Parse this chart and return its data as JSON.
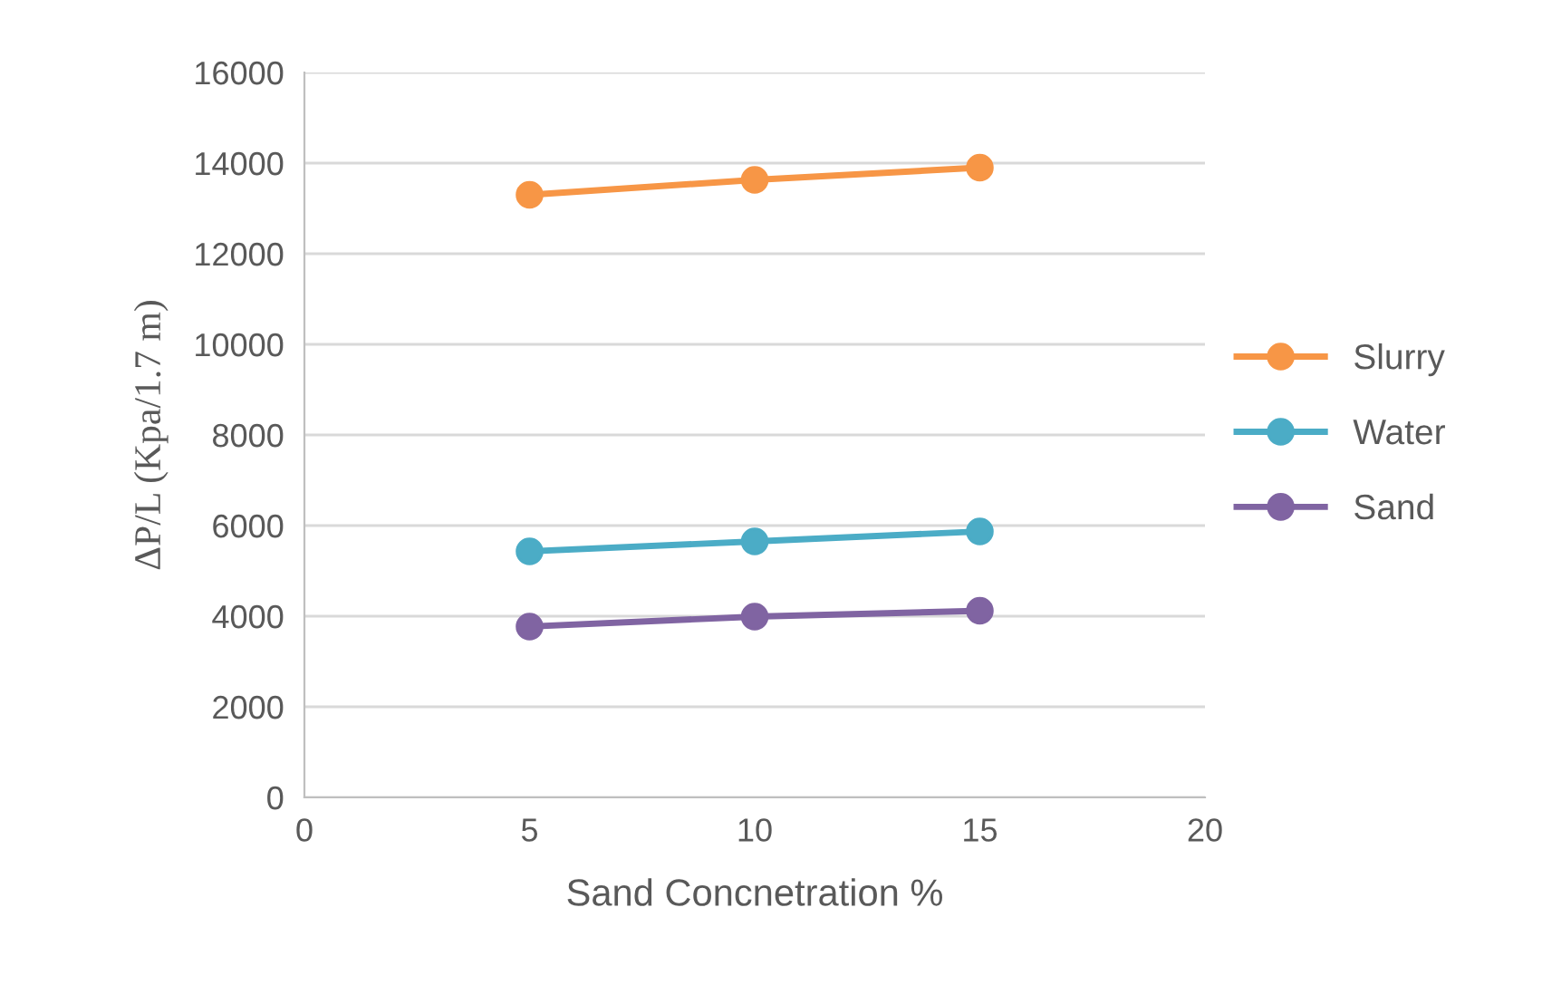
{
  "chart_data": {
    "type": "line",
    "xlabel": "Sand Concnetration %",
    "ylabel": "ΔP/L (Kpa/1.7 m)",
    "x": [
      5,
      10,
      15
    ],
    "series": [
      {
        "name": "Slurry",
        "color": "#f79646",
        "values": [
          13300,
          13630,
          13900
        ]
      },
      {
        "name": "Water",
        "color": "#4bacc6",
        "values": [
          5430,
          5650,
          5870
        ]
      },
      {
        "name": "Sand",
        "color": "#8064a2",
        "values": [
          3770,
          3990,
          4120
        ]
      }
    ],
    "xlim": [
      0,
      20
    ],
    "xticks": [
      0,
      5,
      10,
      15,
      20
    ],
    "ylim": [
      0,
      16000
    ],
    "yticks": [
      0,
      2000,
      4000,
      6000,
      8000,
      10000,
      12000,
      14000,
      16000
    ],
    "grid": "y",
    "legend": "right",
    "marker": "circle",
    "line_style": "solid"
  }
}
